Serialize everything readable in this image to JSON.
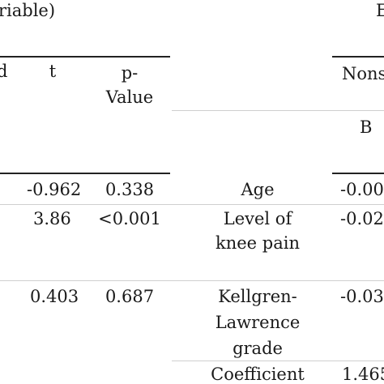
{
  "caption_left": "riable)",
  "caption_right": "E",
  "headers": {
    "col_d": "d",
    "col_t": "t",
    "col_p_line1": "p-",
    "col_p_line2": "Value",
    "nonst": "Nons",
    "b": "B"
  },
  "rows": [
    {
      "t": "-0.962",
      "p": "0.338",
      "var": [
        "Age"
      ],
      "b": "-0.00"
    },
    {
      "t": "3.86",
      "p": "<0.001",
      "var": [
        "Level of",
        "knee pain"
      ],
      "b": "-0.02"
    },
    {
      "t": "0.403",
      "p": "0.687",
      "var": [
        "Kellgren-",
        "Lawrence",
        "grade"
      ],
      "b": "-0.03"
    },
    {
      "t": "",
      "p": "",
      "var": [
        "Coefficient"
      ],
      "b": "1.465"
    }
  ]
}
